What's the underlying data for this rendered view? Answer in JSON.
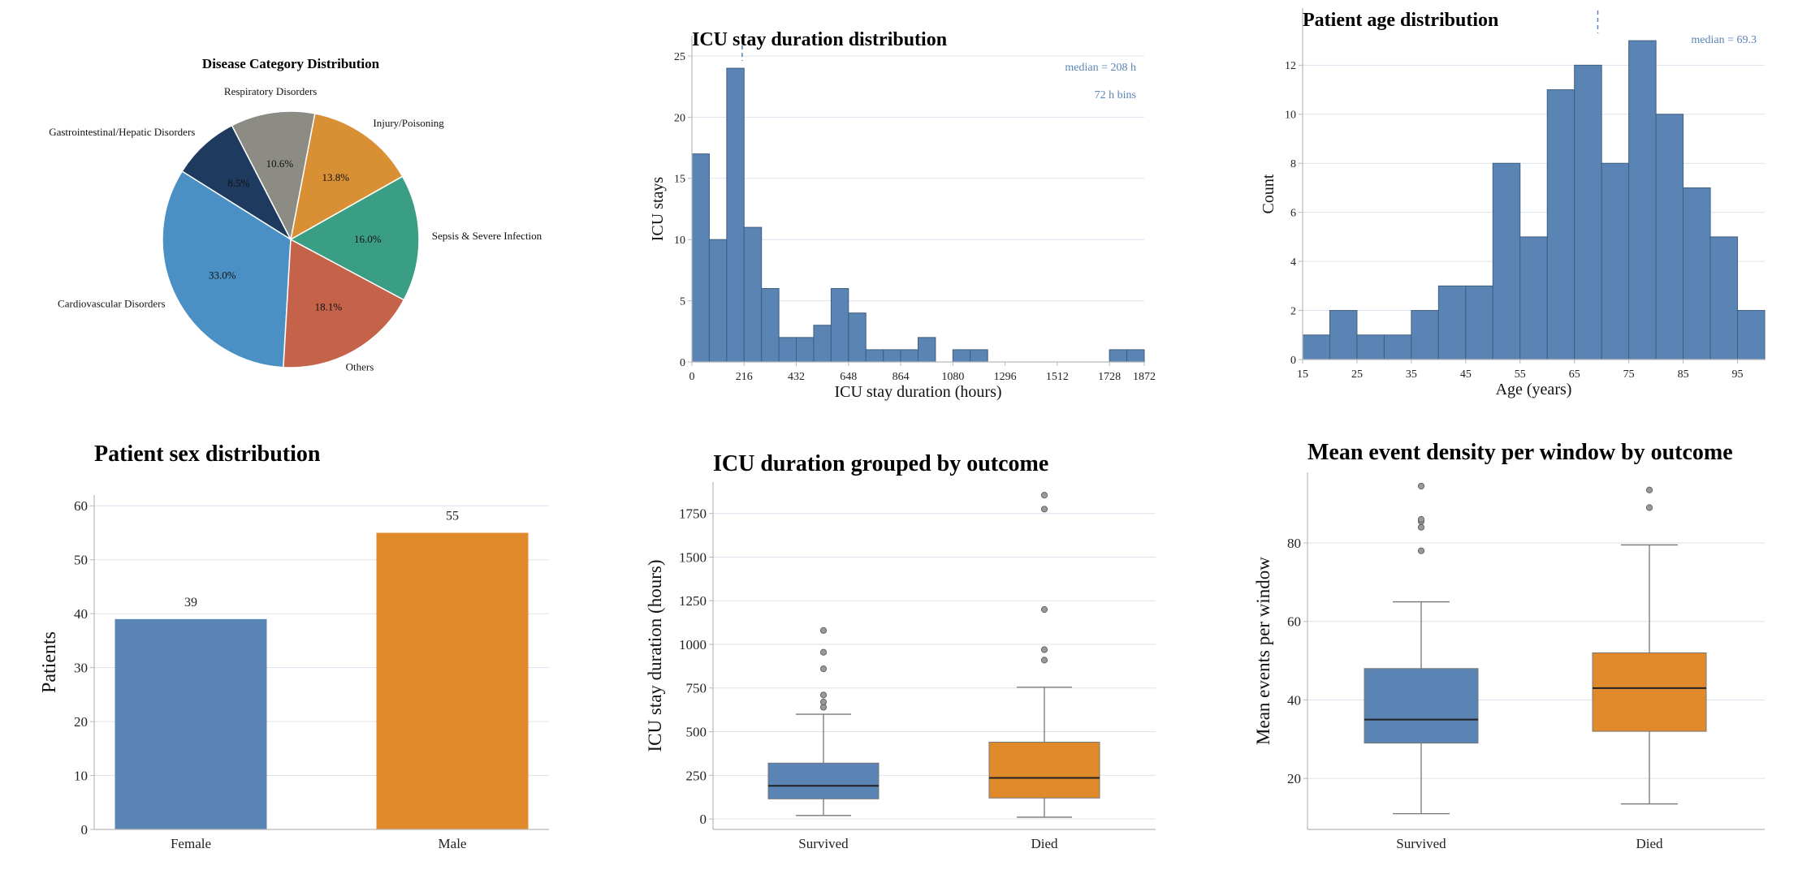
{
  "colors": {
    "blue": "#5a84b3",
    "blue_edge": "#3f5f82",
    "orange": "#e08a2c",
    "annotation": "#5a84b3",
    "grid": "#dbe3ee",
    "axis": "#b8b8b8",
    "median_line": "#222222",
    "whisker": "#777777",
    "flier": "#999999"
  },
  "chart_data": [
    {
      "type": "pie",
      "title": "Disease Category Distribution",
      "labels": [
        "Gastrointestinal/Hepatic Disorders",
        "Cardiovascular Disorders",
        "Others",
        "Sepsis & Severe Infection",
        "Injury/Poisoning",
        "Respiratory Disorders"
      ],
      "values": [
        8.5,
        33.0,
        18.1,
        16.0,
        13.8,
        10.6
      ],
      "pct_labels": [
        "8.5%",
        "33.0%",
        "18.1%",
        "16.0%",
        "13.8%",
        "10.6%"
      ],
      "colors": [
        "#1f3a5f",
        "#4a90c4",
        "#c4624a",
        "#3a9e84",
        "#d99035",
        "#8c8c84"
      ],
      "start_angle_deg": 117.3,
      "direction": "counterclockwise"
    },
    {
      "type": "histogram",
      "title": "ICU stay duration distribution",
      "xlabel": "ICU stay duration (hours)",
      "ylabel": "ICU stays",
      "bin_width": 72,
      "bin_starts": [
        0,
        72,
        144,
        216,
        288,
        360,
        432,
        504,
        576,
        648,
        720,
        792,
        864,
        936,
        1008,
        1080,
        1152,
        1224,
        1296,
        1368,
        1440,
        1512,
        1584,
        1656,
        1728,
        1800
      ],
      "counts": [
        17,
        10,
        24,
        11,
        6,
        2,
        2,
        3,
        6,
        4,
        1,
        1,
        1,
        2,
        0,
        1,
        1,
        0,
        0,
        0,
        0,
        0,
        0,
        0,
        1,
        1
      ],
      "xlim": [
        0,
        1872
      ],
      "ylim": [
        0,
        25
      ],
      "xticks": [
        0,
        216,
        432,
        648,
        864,
        1080,
        1296,
        1512,
        1728,
        1872
      ],
      "yticks": [
        0,
        5,
        10,
        15,
        20,
        25
      ],
      "median": 208,
      "annotations": [
        "median = 208 h",
        "72 h bins"
      ]
    },
    {
      "type": "histogram",
      "title": "Patient age distribution",
      "xlabel": "Age (years)",
      "ylabel": "Count",
      "bin_width": 5,
      "bin_starts": [
        15,
        20,
        25,
        30,
        35,
        40,
        45,
        50,
        55,
        60,
        65,
        70,
        75,
        80,
        85,
        90,
        95
      ],
      "counts": [
        1,
        2,
        1,
        1,
        2,
        3,
        3,
        8,
        5,
        11,
        12,
        8,
        13,
        10,
        7,
        5,
        2
      ],
      "xlim": [
        15,
        100
      ],
      "ylim": [
        0,
        13.5
      ],
      "xticks": [
        15,
        25,
        35,
        45,
        55,
        65,
        75,
        85,
        95
      ],
      "yticks": [
        0,
        2,
        4,
        6,
        8,
        10,
        12
      ],
      "median": 69.3,
      "annotations": [
        "median = 69.3"
      ]
    },
    {
      "type": "bar",
      "title": "Patient sex distribution",
      "ylabel": "Patients",
      "categories": [
        "Female",
        "Male"
      ],
      "values": [
        39,
        55
      ],
      "value_labels": [
        "39",
        "55"
      ],
      "colors": [
        "#5a84b3",
        "#e08a2c"
      ],
      "ylim": [
        0,
        62
      ],
      "yticks": [
        0,
        10,
        20,
        30,
        40,
        50,
        60
      ]
    },
    {
      "type": "box",
      "title": "ICU duration grouped by outcome",
      "ylabel": "ICU stay duration (hours)",
      "categories": [
        "Survived",
        "Died"
      ],
      "colors": [
        "#5a84b3",
        "#e08a2c"
      ],
      "ylim": [
        -60,
        1930
      ],
      "yticks": [
        0,
        250,
        500,
        750,
        1000,
        1250,
        1500,
        1750
      ],
      "boxes": [
        {
          "whislo": 20,
          "q1": 115,
          "med": 190,
          "q3": 320,
          "whishi": 600,
          "fliers": [
            640,
            670,
            710,
            860,
            955,
            1080
          ]
        },
        {
          "whislo": 10,
          "q1": 120,
          "med": 235,
          "q3": 440,
          "whishi": 755,
          "fliers": [
            910,
            970,
            1200,
            1775,
            1855
          ]
        }
      ]
    },
    {
      "type": "box",
      "title": "Mean event density per window by outcome",
      "ylabel": "Mean events per window",
      "categories": [
        "Survived",
        "Died"
      ],
      "colors": [
        "#5a84b3",
        "#e08a2c"
      ],
      "ylim": [
        7,
        98
      ],
      "yticks": [
        20,
        40,
        60,
        80
      ],
      "boxes": [
        {
          "whislo": 11,
          "q1": 29,
          "med": 35,
          "q3": 48,
          "whishi": 65,
          "fliers": [
            78,
            84,
            85.5,
            86,
            94.5
          ]
        },
        {
          "whislo": 13.5,
          "q1": 32,
          "med": 43,
          "q3": 52,
          "whishi": 79.5,
          "fliers": [
            89,
            93.5
          ]
        }
      ]
    }
  ]
}
